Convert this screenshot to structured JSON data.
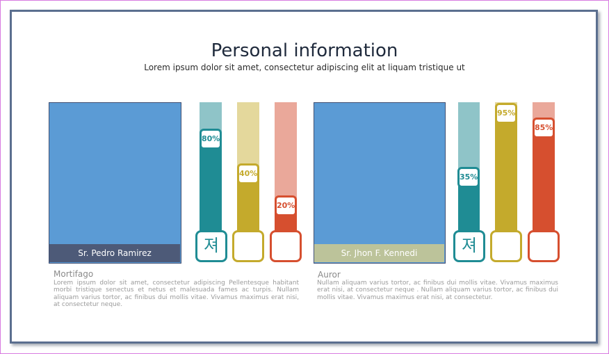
{
  "header": {
    "title": "Personal information",
    "subtitle": "Lorem ipsum dolor sit amet, consectetur adipiscing elit at liquam tristique ut"
  },
  "profiles": [
    {
      "name": "Sr. Pedro Ramirez",
      "name_bar_color": "#4d5a78",
      "role": "Mortifago",
      "description": "Lorem ipsum dolor sit amet, consectetur adipiscing Pellentesque habitant morbi tristique senectus et netus et malesuada fames ac turpis. Nullam aliquam varius tortor, ac finibus dui mollis vitae. Vivamus maximus erat nisi, at consectetur neque.",
      "bars": [
        {
          "percent": 80,
          "label": "80%",
          "color": "#1f8c94",
          "track_color": "#8fc4c8",
          "icon": "져"
        },
        {
          "percent": 40,
          "label": "40%",
          "color": "#c4aa2c",
          "track_color": "#e4d89c",
          "icon": ""
        },
        {
          "percent": 20,
          "label": "20%",
          "color": "#d64f2f",
          "track_color": "#eaa89a",
          "icon": ""
        }
      ]
    },
    {
      "name": "Sr. Jhon F. Kennedi",
      "name_bar_color": "#bcc39a",
      "role": "Auror",
      "description": "Nullam aliquam varius tortor, ac finibus dui mollis vitae. Vivamus maximus erat nisi, at consectetur neque . Nullam aliquam varius tortor, ac finibus dui mollis vitae. Vivamus maximus erat nisi, at consectetur.",
      "bars": [
        {
          "percent": 35,
          "label": "35%",
          "color": "#1f8c94",
          "track_color": "#8fc4c8",
          "icon": "져"
        },
        {
          "percent": 95,
          "label": "95%",
          "color": "#c4aa2c",
          "track_color": "#e4d89c",
          "icon": ""
        },
        {
          "percent": 85,
          "label": "85%",
          "color": "#d64f2f",
          "track_color": "#eaa89a",
          "icon": ""
        }
      ]
    }
  ]
}
